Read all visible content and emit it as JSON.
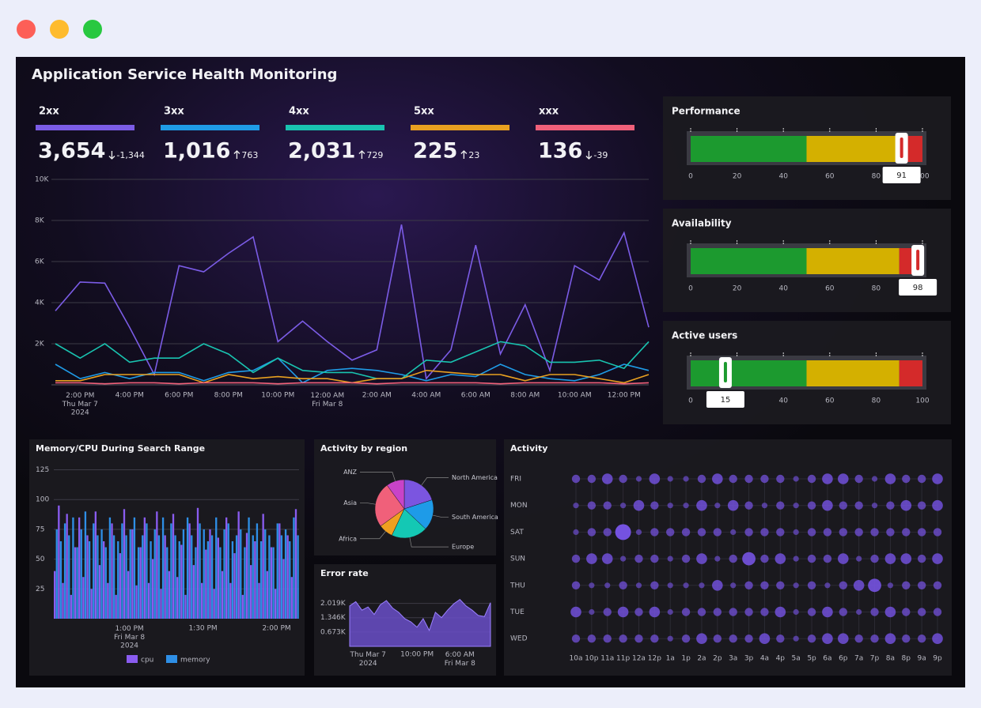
{
  "title": "Application Service Health Monitoring",
  "chart_data": [
    {
      "type": "line",
      "categories": [
        null,
        "2:00 PM\nThu Mar 7\n2024",
        null,
        "4:00 PM",
        null,
        "6:00 PM",
        null,
        "8:00 PM",
        null,
        "10:00 PM",
        null,
        "12:00 AM\nFri Mar 8",
        null,
        "2:00 AM",
        null,
        "4:00 AM",
        null,
        "6:00 AM",
        null,
        "8:00 AM",
        null,
        "10:00 AM",
        null,
        "12:00 PM",
        null
      ],
      "ylim": [
        0,
        10000
      ],
      "yticks": [
        {
          "value": 2000,
          "label": "2K"
        },
        {
          "value": 4000,
          "label": "4K"
        },
        {
          "value": 6000,
          "label": "6K"
        },
        {
          "value": 8000,
          "label": "8K"
        },
        {
          "value": 10000,
          "label": "10K"
        }
      ],
      "grid": true,
      "series": [
        {
          "name": "2xx",
          "color": "#7b5ce6",
          "total": "3,654",
          "change": "-1,344",
          "trend": "down",
          "values": [
            3600,
            5000,
            4950,
            2800,
            500,
            5800,
            5500,
            6400,
            7200,
            2100,
            3100,
            2100,
            1200,
            1700,
            7800,
            300,
            1700,
            6800,
            1500,
            3900,
            700,
            5800,
            5100,
            7400,
            2800
          ]
        },
        {
          "name": "3xx",
          "color": "#1f9be6",
          "total": "1,016",
          "change": "763",
          "trend": "up",
          "values": [
            1000,
            300,
            600,
            300,
            600,
            600,
            200,
            600,
            700,
            1300,
            100,
            700,
            800,
            700,
            500,
            200,
            500,
            400,
            1000,
            500,
            300,
            200,
            500,
            1000,
            700
          ]
        },
        {
          "name": "4xx",
          "color": "#19c3b0",
          "total": "2,031",
          "change": "729",
          "trend": "up",
          "values": [
            2000,
            1300,
            2000,
            1100,
            1300,
            1300,
            2000,
            1500,
            600,
            1300,
            700,
            600,
            600,
            300,
            300,
            1200,
            1100,
            1600,
            2100,
            1900,
            1100,
            1100,
            1200,
            800,
            2100
          ]
        },
        {
          "name": "5xx",
          "color": "#e8a020",
          "total": "225",
          "change": "23",
          "trend": "up",
          "values": [
            200,
            200,
            500,
            500,
            500,
            500,
            100,
            500,
            300,
            400,
            300,
            300,
            100,
            300,
            300,
            700,
            600,
            500,
            500,
            200,
            500,
            500,
            300,
            100,
            500
          ]
        },
        {
          "name": "xxx",
          "color": "#f0607a",
          "total": "136",
          "change": "-39",
          "trend": "down",
          "values": [
            100,
            100,
            50,
            100,
            100,
            50,
            100,
            100,
            100,
            50,
            100,
            100,
            100,
            50,
            100,
            100,
            100,
            100,
            50,
            100,
            100,
            100,
            100,
            50,
            100
          ]
        }
      ]
    },
    {
      "type": "bullet",
      "title": "Performance",
      "value": 91,
      "xlim": [
        0,
        100
      ],
      "xticks": [
        0,
        20,
        40,
        60,
        80,
        100
      ],
      "bands": [
        {
          "to": 50,
          "color": "#1c9a2f"
        },
        {
          "to": 90,
          "color": "#d4b000"
        },
        {
          "to": 100,
          "color": "#d42a2a"
        }
      ]
    },
    {
      "type": "bullet",
      "title": "Availability",
      "value": 98,
      "xlim": [
        0,
        100
      ],
      "xticks": [
        0,
        20,
        40,
        60,
        80,
        100
      ],
      "bands": [
        {
          "to": 50,
          "color": "#1c9a2f"
        },
        {
          "to": 90,
          "color": "#d4b000"
        },
        {
          "to": 100,
          "color": "#d42a2a"
        }
      ]
    },
    {
      "type": "bullet",
      "title": "Active users",
      "value": 15,
      "xlim": [
        0,
        100
      ],
      "xticks": [
        0,
        20,
        40,
        60,
        80,
        100
      ],
      "bands": [
        {
          "to": 50,
          "color": "#1c9a2f"
        },
        {
          "to": 90,
          "color": "#d4b000"
        },
        {
          "to": 100,
          "color": "#d42a2a"
        }
      ]
    },
    {
      "type": "bar",
      "title": "Memory/CPU During Search Range",
      "categories": [
        null,
        null,
        null,
        null,
        null,
        null,
        null,
        null,
        null,
        null,
        null,
        null,
        null,
        null,
        null,
        null,
        null,
        null,
        "1:00 PM\nFri Mar 8\n2024",
        null,
        null,
        null,
        null,
        null,
        null,
        null,
        null,
        null,
        null,
        null,
        null,
        null,
        null,
        null,
        null,
        null,
        "1:30 PM",
        null,
        null,
        null,
        null,
        null,
        null,
        null,
        null,
        null,
        null,
        null,
        null,
        null,
        null,
        null,
        null,
        null,
        "2:00 PM",
        null,
        null,
        null,
        null,
        null
      ],
      "ylim": [
        0,
        128
      ],
      "yticks": [
        25,
        50,
        75,
        100,
        125
      ],
      "grid": true,
      "series": [
        {
          "name": "cpu",
          "color": "#8a5cf0",
          "values": [
            40,
            95,
            30,
            88,
            20,
            60,
            85,
            35,
            70,
            25,
            90,
            45,
            65,
            30,
            80,
            20,
            55,
            92,
            40,
            75,
            28,
            60,
            85,
            30,
            50,
            90,
            25,
            70,
            40,
            88,
            35,
            62,
            20,
            80,
            45,
            93,
            30,
            58,
            75,
            25,
            68,
            40,
            85,
            30,
            55,
            90,
            20,
            72,
            45,
            65,
            30,
            88,
            40,
            60,
            25,
            80,
            50,
            70,
            35,
            92
          ]
        },
        {
          "name": "memory",
          "color": "#2e8fe6",
          "values": [
            75,
            65,
            80,
            70,
            85,
            60,
            75,
            90,
            65,
            80,
            70,
            75,
            60,
            85,
            70,
            65,
            80,
            70,
            75,
            85,
            60,
            70,
            80,
            65,
            75,
            70,
            85,
            60,
            80,
            70,
            65,
            75,
            85,
            70,
            60,
            80,
            75,
            65,
            70,
            85,
            60,
            75,
            80,
            65,
            70,
            75,
            60,
            85,
            70,
            80,
            65,
            75,
            70,
            60,
            80,
            70,
            75,
            65,
            85,
            70
          ]
        }
      ]
    },
    {
      "type": "pie",
      "title": "Activity by region",
      "categories": [
        "North America",
        "South America",
        "Europe",
        "Africa",
        "Asia",
        "ANZ"
      ],
      "values": [
        20,
        17,
        20,
        8,
        25,
        10
      ],
      "colors": [
        "#7b55e0",
        "#1e9be8",
        "#14c8b4",
        "#f0a020",
        "#f0607a",
        "#c843c8"
      ]
    },
    {
      "type": "area",
      "title": "Error rate",
      "categories": [
        null,
        null,
        null,
        "Thu Mar 7\n2024",
        null,
        null,
        null,
        null,
        null,
        null,
        null,
        "10:00 PM",
        null,
        null,
        null,
        null,
        null,
        null,
        "6:00 AM\nFri Mar 8",
        null,
        null,
        null,
        null,
        null
      ],
      "values": [
        1900,
        2100,
        1700,
        1850,
        1500,
        1950,
        2150,
        1800,
        1600,
        1300,
        1150,
        900,
        1300,
        750,
        1600,
        1350,
        1700,
        2000,
        2200,
        1900,
        1700,
        1450,
        1400,
        2050
      ],
      "color": "#6a4fc8",
      "ylim": [
        0,
        2300
      ],
      "yticks": [
        {
          "value": 673,
          "label": "0.673K"
        },
        {
          "value": 1346,
          "label": "1.346K"
        },
        {
          "value": 2019,
          "label": "2.019K"
        }
      ],
      "grid": true
    },
    {
      "type": "punchcard",
      "title": "Activity",
      "categories": [
        "10a",
        "10p",
        "11a",
        "11p",
        "12a",
        "12p",
        "1a",
        "1p",
        "2a",
        "2p",
        "3a",
        "3p",
        "4a",
        "4p",
        "5a",
        "5p",
        "6a",
        "6p",
        "7a",
        "7p",
        "8a",
        "8p",
        "9a",
        "9p"
      ],
      "rows": [
        "FRI",
        "MON",
        "SAT",
        "SUN",
        "THU",
        "TUE",
        "WED"
      ],
      "color": "#7452e0",
      "values": [
        [
          2,
          2,
          3,
          2,
          1,
          3,
          1,
          1,
          2,
          3,
          2,
          2,
          2,
          2,
          1,
          2,
          3,
          3,
          2,
          1,
          3,
          2,
          2,
          3
        ],
        [
          1,
          2,
          2,
          1,
          3,
          2,
          1,
          1,
          3,
          1,
          3,
          2,
          1,
          2,
          1,
          2,
          3,
          2,
          2,
          1,
          2,
          3,
          2,
          3
        ],
        [
          1,
          2,
          2,
          5,
          1,
          2,
          2,
          2,
          2,
          2,
          1,
          2,
          2,
          2,
          1,
          2,
          2,
          2,
          2,
          2,
          2,
          2,
          2,
          2
        ],
        [
          2,
          3,
          3,
          1,
          2,
          2,
          1,
          2,
          3,
          1,
          2,
          4,
          2,
          3,
          1,
          2,
          2,
          3,
          1,
          2,
          3,
          3,
          2,
          3
        ],
        [
          2,
          1,
          1,
          2,
          1,
          2,
          1,
          1,
          1,
          3,
          1,
          2,
          2,
          2,
          1,
          2,
          1,
          2,
          3,
          4,
          1,
          2,
          2,
          2
        ],
        [
          3,
          1,
          2,
          3,
          2,
          3,
          1,
          2,
          2,
          2,
          2,
          2,
          2,
          3,
          1,
          2,
          3,
          2,
          1,
          2,
          3,
          2,
          2,
          2
        ],
        [
          2,
          2,
          2,
          2,
          2,
          2,
          1,
          2,
          3,
          2,
          2,
          2,
          3,
          2,
          1,
          2,
          3,
          3,
          2,
          2,
          3,
          2,
          2,
          3
        ]
      ]
    }
  ]
}
